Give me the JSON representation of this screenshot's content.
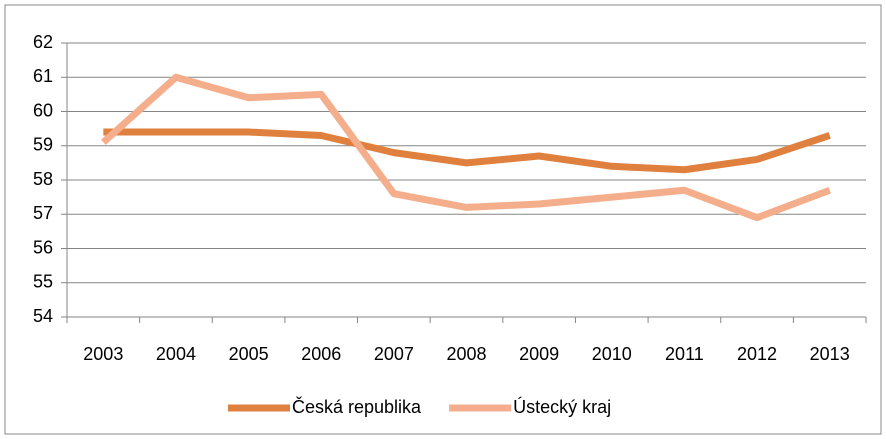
{
  "chart_data": {
    "type": "line",
    "categories": [
      "2003",
      "2004",
      "2005",
      "2006",
      "2007",
      "2008",
      "2009",
      "2010",
      "2011",
      "2012",
      "2013"
    ],
    "series": [
      {
        "name": "Česká republika",
        "color": "#e0803e",
        "values": [
          59.4,
          59.4,
          59.4,
          59.3,
          58.8,
          58.5,
          58.7,
          58.4,
          58.3,
          58.6,
          59.3
        ]
      },
      {
        "name": "Ústecký kraj",
        "color": "#f5ae8c",
        "values": [
          59.1,
          61.0,
          60.4,
          60.5,
          57.6,
          57.2,
          57.3,
          57.5,
          57.7,
          56.9,
          57.7
        ]
      }
    ],
    "ylim": [
      54,
      62
    ],
    "yticks": [
      54,
      55,
      56,
      57,
      58,
      59,
      60,
      61,
      62
    ],
    "grid": true,
    "legend": "bottom"
  }
}
